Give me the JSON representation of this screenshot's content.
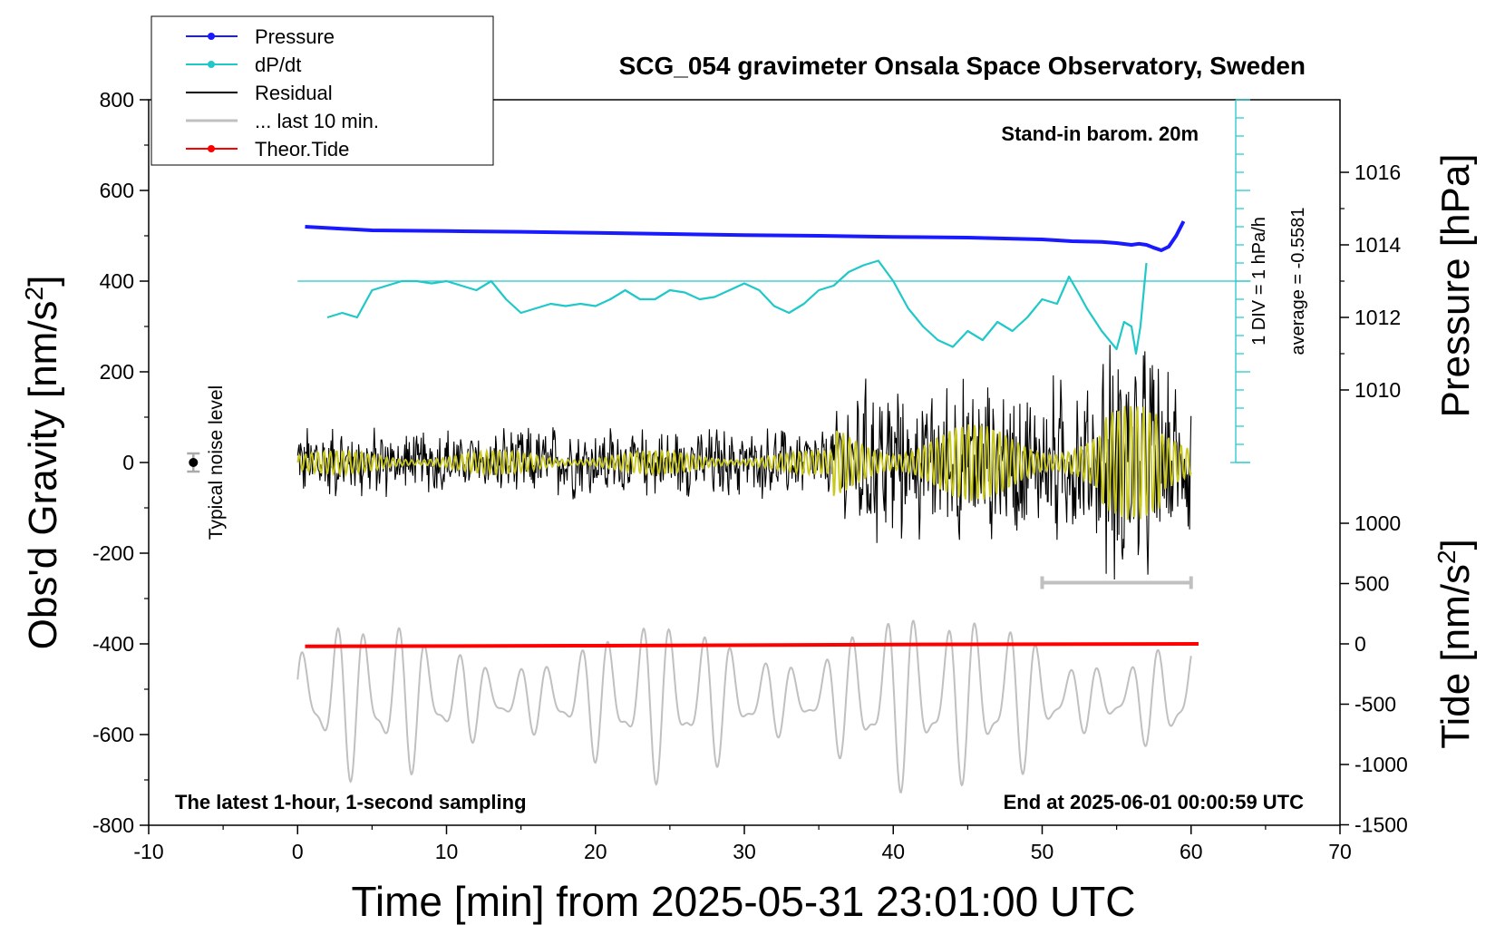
{
  "chart_data": {
    "type": "line",
    "title": "SCG_054 gravimeter Onsala Space Observatory, Sweden",
    "xlabel": "Time [min] from 2025-05-31 23:01:00 UTC",
    "ylabel_left": "Obs'd Gravity [nm/s",
    "ylabel_right_top": "Pressure [hPa]",
    "ylabel_right_bottom": "Tide [nm/s",
    "xlim": [
      -10,
      70
    ],
    "ylim": [
      -800,
      800
    ],
    "pressure_ylim": [
      1008,
      1018
    ],
    "tide_ylim": [
      -1500,
      1500
    ],
    "x_ticks": [
      "-10",
      "0",
      "10",
      "20",
      "30",
      "40",
      "50",
      "60",
      "70"
    ],
    "y_ticks": [
      "800",
      "600",
      "400",
      "200",
      "0",
      "-200",
      "-400",
      "-600",
      "-800"
    ],
    "pressure_ticks": [
      "1016",
      "1014",
      "1012",
      "1010"
    ],
    "tide_ticks": [
      "1000",
      "500",
      "0",
      "-500",
      "-1000",
      "-1500"
    ],
    "legend": {
      "placement": "top-left",
      "items": [
        {
          "label": "Pressure",
          "color": "#1a1aff",
          "marker": true
        },
        {
          "label": "dP/dt",
          "color": "#20c8c8",
          "marker": true
        },
        {
          "label": "Residual",
          "color": "#000000",
          "marker": false
        },
        {
          "label": "... last 10 min.",
          "color": "#c0c0c0",
          "marker": false
        },
        {
          "label": "Theor.Tide",
          "color": "#ff0000",
          "marker": true
        }
      ]
    },
    "annotations": {
      "barometer": "Stand-in barom. 20m",
      "noise": "Typical noise level",
      "div": "1 DIV = 1 hPa/h",
      "average": "average = -0.5581",
      "latest": "The latest 1-hour, 1-second sampling",
      "end": "End at 2025-06-01 00:00:59 UTC"
    },
    "series": [
      {
        "name": "Pressure",
        "color": "#1a1aff",
        "x": [
          0.5,
          5,
          10,
          15,
          20,
          25,
          30,
          35,
          40,
          45,
          50,
          52,
          54,
          55,
          56,
          56.5,
          57,
          57.5,
          58,
          58.5,
          59,
          59.5
        ],
        "y": [
          1014.5,
          1014.4,
          1014.38,
          1014.36,
          1014.33,
          1014.3,
          1014.27,
          1014.25,
          1014.22,
          1014.2,
          1014.15,
          1014.1,
          1014.08,
          1014.05,
          1014.0,
          1014.03,
          1014.0,
          1013.92,
          1013.85,
          1013.95,
          1014.25,
          1014.65
        ]
      },
      {
        "name": "dP/dt",
        "color": "#20c8c8",
        "x": [
          2,
          3,
          4,
          5,
          6,
          7,
          8,
          9,
          10,
          11,
          12,
          13,
          14,
          15,
          16,
          17,
          18,
          19,
          20,
          21,
          22,
          23,
          24,
          25,
          26,
          27,
          28,
          29,
          30,
          31,
          32,
          33,
          34,
          35,
          36,
          37,
          38,
          39,
          40,
          41,
          42,
          43,
          44,
          45,
          46,
          47,
          48,
          49,
          50,
          51,
          51.8,
          52.5,
          53,
          54,
          55,
          55.5,
          56,
          56.3,
          56.6,
          57
        ],
        "y": [
          320,
          330,
          320,
          380,
          390,
          400,
          400,
          395,
          400,
          390,
          380,
          400,
          360,
          330,
          340,
          350,
          345,
          350,
          345,
          360,
          380,
          360,
          360,
          380,
          375,
          360,
          365,
          380,
          395,
          380,
          345,
          330,
          350,
          380,
          390,
          420,
          435,
          445,
          400,
          340,
          300,
          270,
          255,
          290,
          270,
          310,
          290,
          320,
          360,
          350,
          410,
          370,
          340,
          290,
          250,
          310,
          300,
          240,
          300,
          440
        ]
      },
      {
        "name": "Residual",
        "color": "#000000",
        "x_range": [
          0,
          60
        ],
        "amplitude_early": 75,
        "amplitude_late": 170
      },
      {
        "name": "... last 10 min.",
        "color": "#c0c0c0",
        "x_range": [
          0,
          60
        ],
        "y_center": -520,
        "amplitude": 190
      },
      {
        "name": "Theor.Tide",
        "color": "#ff0000",
        "x": [
          0.5,
          20,
          40,
          60.5
        ],
        "tide_values": [
          -20,
          -15,
          -5,
          0
        ]
      }
    ],
    "noise_bar": {
      "x": -7,
      "y": 0,
      "err": 20
    },
    "window_bar": {
      "x0": 50,
      "x1": 60,
      "y": -265
    }
  }
}
